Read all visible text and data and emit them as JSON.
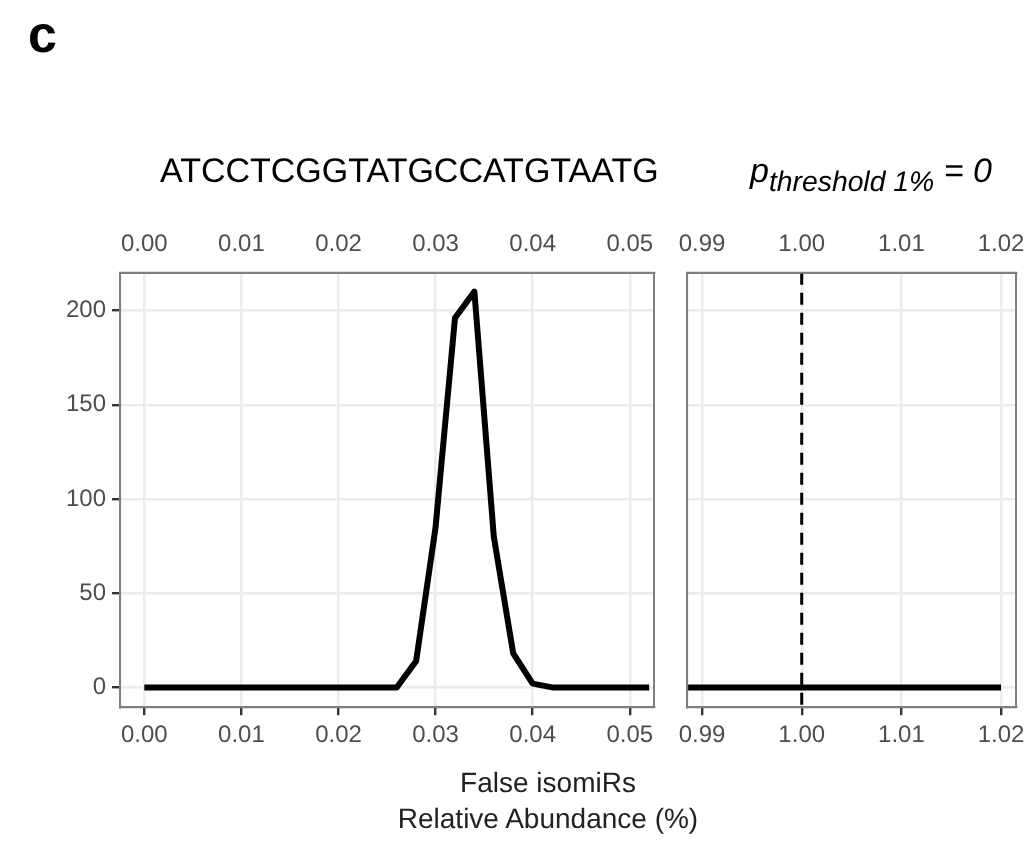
{
  "chart_data": [
    {
      "type": "line",
      "title": "ATCCTCGGTATGCCATGTAATG",
      "annotations": [
        "c"
      ],
      "xlabel": "False isomiRs\nRelative Abundance (%)",
      "series": [
        {
          "color": "#000000",
          "x": [
            0,
            0.002,
            0.004,
            0.006,
            0.008,
            0.01,
            0.012,
            0.014,
            0.016,
            0.018,
            0.02,
            0.022,
            0.024,
            0.026,
            0.028,
            0.03,
            0.032,
            0.034,
            0.036,
            0.038,
            0.04,
            0.042,
            0.044,
            0.046,
            0.048,
            0.05,
            0.052
          ],
          "values": [
            0,
            0,
            0,
            0,
            0,
            0,
            0,
            0,
            0,
            0,
            0,
            0,
            0,
            0,
            14,
            85,
            196,
            210,
            80,
            18,
            2,
            0,
            0,
            0,
            0,
            0,
            0
          ]
        }
      ],
      "xlim": [
        -0.0025,
        0.0525
      ],
      "xticks": [
        {
          "value": 0,
          "label": "0.00"
        },
        {
          "value": 0.01,
          "label": "0.01"
        },
        {
          "value": 0.02,
          "label": "0.02"
        },
        {
          "value": 0.03,
          "label": "0.03"
        },
        {
          "value": 0.04,
          "label": "0.04"
        },
        {
          "value": 0.05,
          "label": "0.05"
        }
      ],
      "x2lim": [
        -0.0025,
        0.0525
      ],
      "x2ticks": [
        {
          "value": 0,
          "label": "0.00"
        },
        {
          "value": 0.01,
          "label": "0.01"
        },
        {
          "value": 0.02,
          "label": "0.02"
        },
        {
          "value": 0.03,
          "label": "0.03"
        },
        {
          "value": 0.04,
          "label": "0.04"
        },
        {
          "value": 0.05,
          "label": "0.05"
        }
      ],
      "ylim": [
        -10.5,
        220
      ],
      "yticks": [
        0,
        50,
        100,
        150,
        200
      ],
      "grid": true,
      "legend": false,
      "line_style": "solid",
      "marker": "none"
    },
    {
      "type": "line",
      "title": "p$_{threshold 1%}$ = 0",
      "series": [
        {
          "color": "#000000",
          "x": [
            0.9886,
            1.02
          ],
          "values": [
            0,
            0
          ]
        }
      ],
      "xlim": [
        0.9885,
        1.0215
      ],
      "xticks": [
        {
          "value": 0.99,
          "label": "0.99"
        },
        {
          "value": 1,
          "label": "1.00"
        },
        {
          "value": 1.01,
          "label": "1.01"
        },
        {
          "value": 1.02,
          "label": "1.02"
        }
      ],
      "x2lim": [
        0.9885,
        1.0215
      ],
      "x2ticks": [
        {
          "value": 0.99,
          "label": "0.99"
        },
        {
          "value": 1,
          "label": "1.00"
        },
        {
          "value": 1.01,
          "label": "1.01"
        },
        {
          "value": 1.02,
          "label": "1.02"
        }
      ],
      "ylim": [
        -10.5,
        220
      ],
      "yticks": [
        0,
        50,
        100,
        150,
        200
      ],
      "tick_labels": "x",
      "grid": true,
      "legend": false,
      "line_style": "solid",
      "marker": "none",
      "ref_lines": [
        {
          "axis": "x",
          "value": 1,
          "color": "#000000",
          "line_style": "dashed"
        }
      ]
    }
  ]
}
